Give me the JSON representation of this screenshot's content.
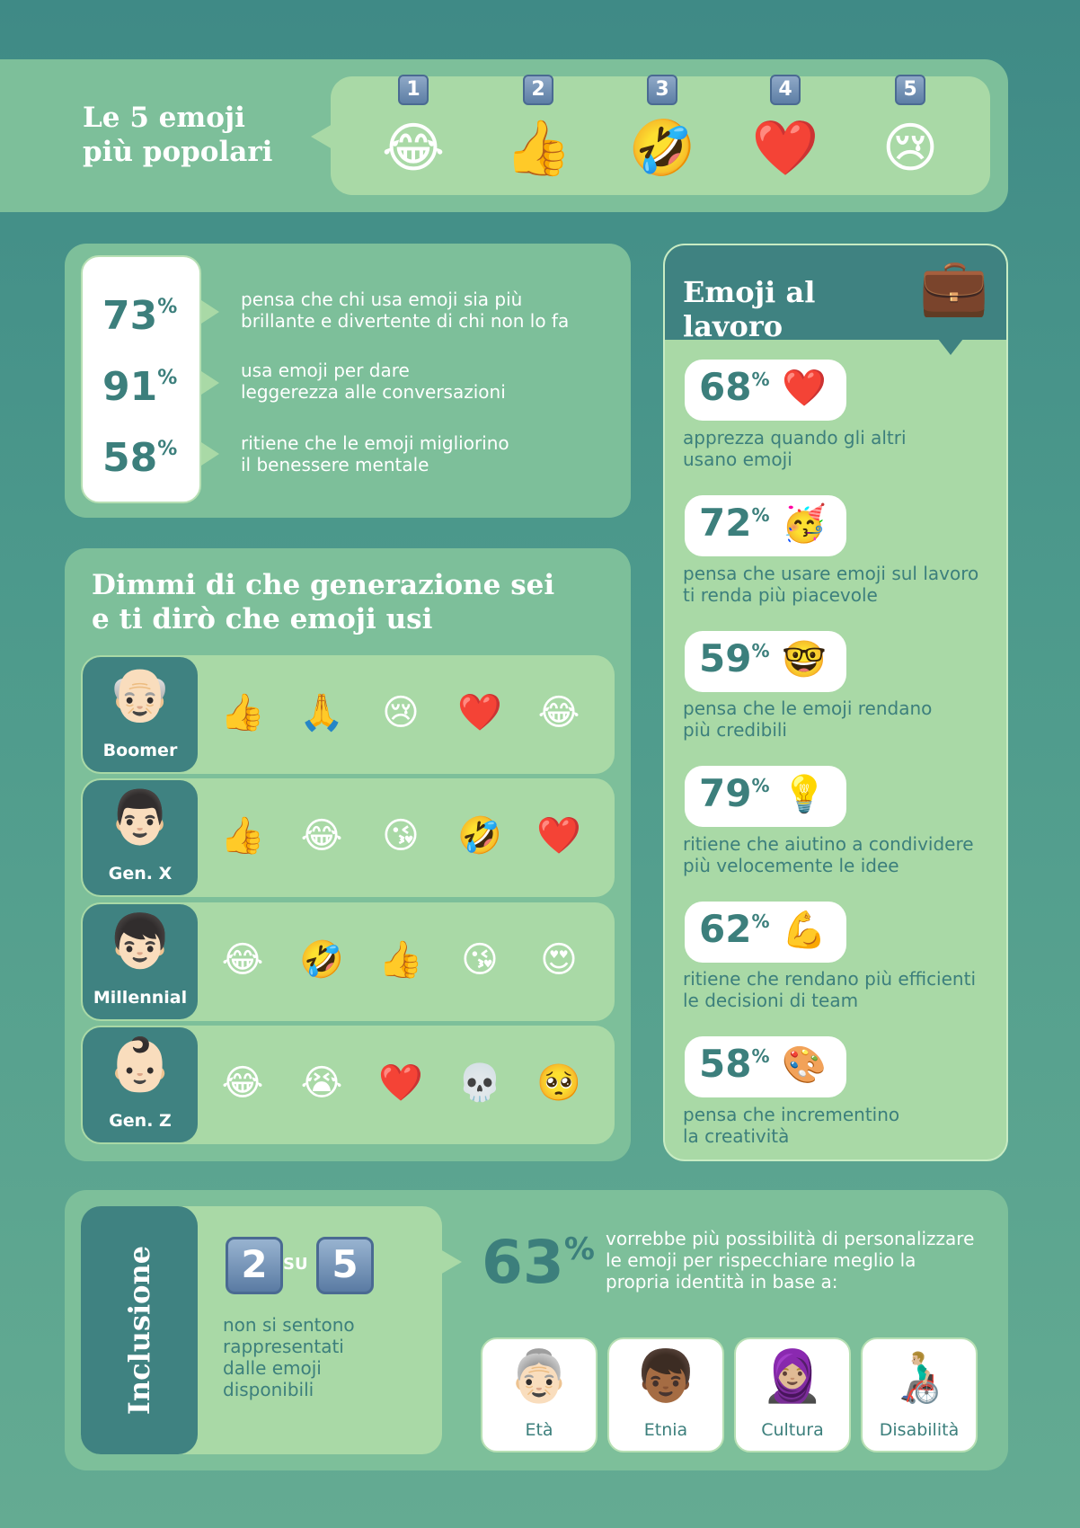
{
  "colors": {
    "teal_dark": "#3f8281",
    "green_mid": "#7dbf9a",
    "green_light": "#a9d9a6",
    "text_teal": "#3c7f7c"
  },
  "top": {
    "title_line1": "Le 5 emoji",
    "title_line2": "più popolari",
    "ranks": [
      {
        "num": "1",
        "emoji": "😂"
      },
      {
        "num": "2",
        "emoji": "👍"
      },
      {
        "num": "3",
        "emoji": "🤣"
      },
      {
        "num": "4",
        "emoji": "❤️"
      },
      {
        "num": "5",
        "emoji": "😢"
      }
    ]
  },
  "stats": [
    {
      "value": "73",
      "unit": "%",
      "line1": "pensa che chi usa emoji sia più",
      "line2": "brillante e divertente di chi non lo fa"
    },
    {
      "value": "91",
      "unit": "%",
      "line1": "usa emoji per dare",
      "line2": "leggerezza alle conversazioni"
    },
    {
      "value": "58",
      "unit": "%",
      "line1": "ritiene che le emoji migliorino",
      "line2": "il benessere mentale"
    }
  ],
  "generations": {
    "title_line1": "Dimmi di che generazione sei",
    "title_line2": "e ti dirò che emoji usi",
    "rows": [
      {
        "label": "Boomer",
        "avatar": "👴🏻",
        "emojis": [
          "👍",
          "🙏",
          "😢",
          "❤️",
          "😂"
        ]
      },
      {
        "label": "Gen. X",
        "avatar": "👨🏻",
        "emojis": [
          "👍",
          "😂",
          "😘",
          "🤣",
          "❤️"
        ]
      },
      {
        "label": "Millennial",
        "avatar": "👦🏻",
        "emojis": [
          "😂",
          "🤣",
          "👍",
          "😘",
          "😍"
        ]
      },
      {
        "label": "Gen. Z",
        "avatar": "👶🏻",
        "emojis": [
          "😂",
          "😭",
          "❤️",
          "💀",
          "🥺"
        ]
      }
    ]
  },
  "work": {
    "title": "Emoji al lavoro",
    "icon": "💼",
    "items": [
      {
        "value": "68",
        "unit": "%",
        "emoji": "❤️",
        "line1": "apprezza quando gli altri",
        "line2": "usano emoji"
      },
      {
        "value": "72",
        "unit": "%",
        "emoji": "🥳",
        "line1": "pensa che usare emoji sul lavoro",
        "line2": "ti renda più piacevole"
      },
      {
        "value": "59",
        "unit": "%",
        "emoji": "🤓",
        "line1": "pensa che le emoji rendano",
        "line2": "più credibili"
      },
      {
        "value": "79",
        "unit": "%",
        "emoji": "💡",
        "line1": "ritiene che aiutino a condividere",
        "line2": "più velocemente le idee"
      },
      {
        "value": "62",
        "unit": "%",
        "emoji": "💪",
        "line1": "ritiene che rendano più efficienti",
        "line2": "le decisioni di team"
      },
      {
        "value": "58",
        "unit": "%",
        "emoji": "🎨",
        "line1": "pensa che incrementino",
        "line2": "la creatività"
      }
    ]
  },
  "inclusion": {
    "label": "Inclusione",
    "num_a": "2",
    "su": "SU",
    "num_b": "5",
    "desc_lines": [
      "non si sentono",
      "rappresentati",
      "dalle emoji",
      "disponibili"
    ],
    "pct_value": "63",
    "pct_unit": "%",
    "text_lines": [
      "vorrebbe più possibilità di personalizzare",
      "le emoji per rispecchiare meglio la",
      "propria identità in base a:"
    ],
    "identities": [
      {
        "label": "Età",
        "emoji": "👵🏻"
      },
      {
        "label": "Etnia",
        "emoji": "👦🏾"
      },
      {
        "label": "Cultura",
        "emoji": "🧕🏼"
      },
      {
        "label": "Disabilità",
        "emoji": "👨🏼‍🦽"
      }
    ]
  }
}
